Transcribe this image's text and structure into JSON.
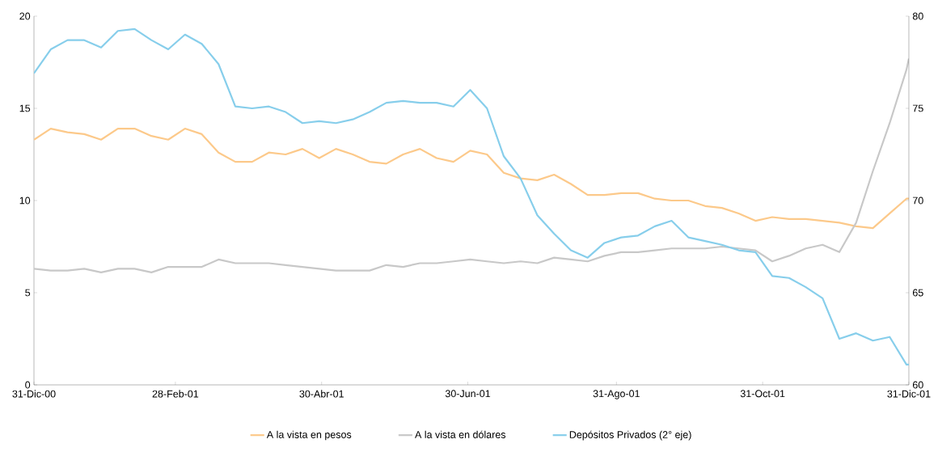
{
  "chart_data": {
    "type": "line",
    "x": [
      "2000-12-31",
      "2001-01-07",
      "2001-01-14",
      "2001-01-21",
      "2001-01-28",
      "2001-02-04",
      "2001-02-11",
      "2001-02-18",
      "2001-02-25",
      "2001-03-04",
      "2001-03-11",
      "2001-03-18",
      "2001-03-25",
      "2001-04-01",
      "2001-04-08",
      "2001-04-15",
      "2001-04-22",
      "2001-04-29",
      "2001-05-06",
      "2001-05-13",
      "2001-05-20",
      "2001-05-27",
      "2001-06-03",
      "2001-06-10",
      "2001-06-17",
      "2001-06-24",
      "2001-07-01",
      "2001-07-08",
      "2001-07-15",
      "2001-07-22",
      "2001-07-29",
      "2001-08-05",
      "2001-08-12",
      "2001-08-19",
      "2001-08-26",
      "2001-09-02",
      "2001-09-09",
      "2001-09-16",
      "2001-09-23",
      "2001-09-30",
      "2001-10-07",
      "2001-10-14",
      "2001-10-21",
      "2001-10-28",
      "2001-11-04",
      "2001-11-11",
      "2001-11-18",
      "2001-11-25",
      "2001-12-02",
      "2001-12-09",
      "2001-12-16",
      "2001-12-23",
      "2001-12-30",
      "2001-12-31"
    ],
    "series": [
      {
        "name": "A la vista  en pesos",
        "color": "#fcc98a",
        "values": [
          13.3,
          13.9,
          13.7,
          13.6,
          13.3,
          13.9,
          13.9,
          13.5,
          13.3,
          13.9,
          13.6,
          12.6,
          12.1,
          12.1,
          12.6,
          12.5,
          12.8,
          12.3,
          12.8,
          12.5,
          12.1,
          12.0,
          12.5,
          12.8,
          12.3,
          12.1,
          12.7,
          12.5,
          11.5,
          11.2,
          11.1,
          11.4,
          10.9,
          10.3,
          10.3,
          10.4,
          10.4,
          10.1,
          10.0,
          10.0,
          9.7,
          9.6,
          9.3,
          8.9,
          9.1,
          9.0,
          9.0,
          8.9,
          8.8,
          8.6,
          8.5,
          9.3,
          10.1,
          10.1
        ]
      },
      {
        "name": "A la vista en dólares",
        "color": "#c8c8c8",
        "values": [
          6.3,
          6.2,
          6.2,
          6.3,
          6.1,
          6.3,
          6.3,
          6.1,
          6.4,
          6.4,
          6.4,
          6.8,
          6.6,
          6.6,
          6.6,
          6.5,
          6.4,
          6.3,
          6.2,
          6.2,
          6.2,
          6.5,
          6.4,
          6.6,
          6.6,
          6.7,
          6.8,
          6.7,
          6.6,
          6.7,
          6.6,
          6.9,
          6.8,
          6.7,
          7.0,
          7.2,
          7.2,
          7.3,
          7.4,
          7.4,
          7.4,
          7.5,
          7.4,
          7.3,
          6.7,
          7.0,
          7.4,
          7.6,
          7.2,
          8.8,
          11.6,
          14.2,
          17.1,
          17.7
        ]
      },
      {
        "name": "Depósitos Privados (2° eje)",
        "color": "#87ceeb",
        "axis": "y2",
        "values": [
          76.9,
          78.2,
          78.7,
          78.7,
          78.3,
          79.2,
          79.3,
          78.7,
          78.2,
          79.0,
          78.5,
          77.4,
          75.1,
          75.0,
          75.1,
          74.8,
          74.2,
          74.3,
          74.2,
          74.4,
          74.8,
          75.3,
          75.4,
          75.3,
          75.3,
          75.1,
          76.0,
          75.0,
          72.4,
          71.2,
          69.2,
          68.2,
          67.3,
          66.9,
          67.7,
          68.0,
          68.1,
          68.6,
          68.9,
          68.0,
          67.8,
          67.6,
          67.3,
          67.2,
          65.9,
          65.8,
          65.3,
          64.7,
          62.5,
          62.8,
          62.4,
          62.6,
          61.1,
          61.1
        ]
      }
    ],
    "xlim": [
      "2000-12-31",
      "2001-12-31"
    ],
    "xticks": [
      {
        "value": "2000-12-31",
        "label": "31-Dic-00"
      },
      {
        "value": "2001-02-28",
        "label": "28-Feb-01"
      },
      {
        "value": "2001-04-30",
        "label": "30-Abr-01"
      },
      {
        "value": "2001-06-30",
        "label": "30-Jun-01"
      },
      {
        "value": "2001-08-31",
        "label": "31-Ago-01"
      },
      {
        "value": "2001-10-31",
        "label": "31-Oct-01"
      },
      {
        "value": "2001-12-31",
        "label": "31-Dic-01"
      }
    ],
    "ylim": [
      0,
      20
    ],
    "yticks": [
      0,
      5,
      10,
      15,
      20
    ],
    "y2lim": [
      60,
      80
    ],
    "y2ticks": [
      60,
      65,
      70,
      75,
      80
    ],
    "legend": "bottom",
    "marker": "none",
    "line_style": "solid",
    "grid": false
  }
}
